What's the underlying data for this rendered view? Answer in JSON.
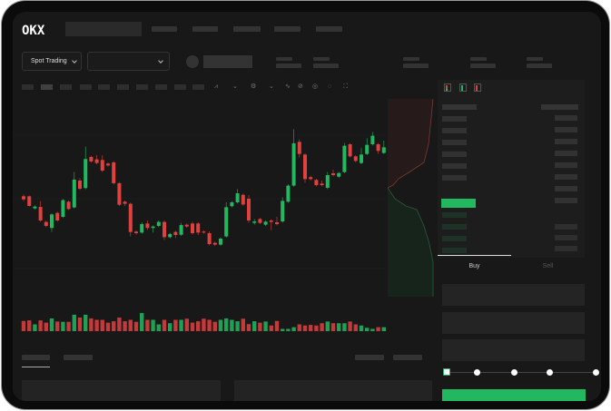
{
  "header": {
    "logo": "OKX"
  },
  "controls": {
    "market_type": "Spot Trading"
  },
  "trade_form": {
    "tabs": [
      {
        "label": "Buy",
        "active": true
      },
      {
        "label": "Sell",
        "active": false
      }
    ],
    "slider_percent": 0
  },
  "colors": {
    "up": "#22b85f",
    "down": "#e0413f",
    "background": "#181818"
  },
  "chart_data": {
    "type": "candlestick",
    "candles": [
      [
        50,
        47.5,
        51.5,
        46
      ],
      [
        50,
        42,
        50.5,
        41.5
      ],
      [
        40,
        41.5,
        42.5,
        39
      ],
      [
        41.2,
        30,
        46,
        29
      ],
      [
        28.8,
        25.5,
        29.8,
        24.5
      ],
      [
        23.8,
        35,
        36,
        20.5
      ],
      [
        36.2,
        30,
        37.2,
        29
      ],
      [
        33,
        46.8,
        47.8,
        32
      ],
      [
        45.5,
        39.5,
        46.5,
        38.5
      ],
      [
        40.8,
        63.8,
        70,
        39.8
      ],
      [
        63,
        56.2,
        65,
        55.2
      ],
      [
        56.8,
        80.8,
        91,
        55.8
      ],
      [
        82.5,
        78.8,
        83.5,
        77.8
      ],
      [
        80.5,
        77.5,
        84,
        76.5
      ],
      [
        80,
        71.2,
        84,
        70
      ],
      [
        77,
        75.5,
        78,
        74.5
      ],
      [
        78,
        60.8,
        79,
        59.8
      ],
      [
        60.8,
        43,
        61.8,
        42
      ],
      [
        45.5,
        43.8,
        46.5,
        42
      ],
      [
        43.8,
        20.5,
        44.8,
        17
      ],
      [
        20.8,
        19.5,
        21.8,
        18.5
      ],
      [
        20,
        27,
        28.5,
        19
      ],
      [
        27.5,
        23.8,
        30,
        22
      ],
      [
        23.8,
        25,
        26,
        20
      ],
      [
        25.5,
        28.8,
        30,
        24.5
      ],
      [
        28.8,
        16.2,
        29.8,
        14
      ],
      [
        16.2,
        18.8,
        19.8,
        15.2
      ],
      [
        20.5,
        18,
        21.5,
        15.5
      ],
      [
        18.2,
        26.2,
        28,
        17.2
      ],
      [
        26.5,
        25,
        27.5,
        24
      ],
      [
        27.5,
        19.5,
        29,
        18.5
      ],
      [
        27.5,
        20,
        28.5,
        18
      ],
      [
        20.8,
        20,
        21.8,
        19
      ],
      [
        19.5,
        10.5,
        21,
        9.5
      ],
      [
        11.5,
        10,
        12.5,
        9
      ],
      [
        10,
        15,
        16,
        9
      ],
      [
        16.8,
        41,
        45,
        15.8
      ],
      [
        41.8,
        45,
        46,
        40.8
      ],
      [
        45,
        52.5,
        56,
        44
      ],
      [
        51.2,
        43.2,
        52.2,
        42.2
      ],
      [
        48,
        30,
        51,
        28
      ],
      [
        28,
        29.2,
        31,
        26.5
      ],
      [
        31.2,
        28,
        32.2,
        27
      ],
      [
        26.5,
        29,
        30,
        25.5
      ],
      [
        30,
        28.8,
        31,
        22
      ],
      [
        28.5,
        27,
        33,
        26
      ],
      [
        29.2,
        46.2,
        49,
        28.2
      ],
      [
        45.5,
        58.8,
        60,
        44.5
      ],
      [
        58.8,
        93.8,
        105.5,
        57.8
      ],
      [
        95,
        85,
        97,
        82
      ],
      [
        84.5,
        64.2,
        85.5,
        61
      ],
      [
        65.8,
        64.2,
        66.8,
        63.2
      ],
      [
        63.5,
        59.2,
        64.5,
        58.2
      ],
      [
        60.5,
        59.2,
        63,
        58.2
      ],
      [
        57,
        67.5,
        70,
        56
      ],
      [
        69,
        67.5,
        72,
        66.5
      ],
      [
        66.2,
        69.2,
        70.2,
        65.2
      ],
      [
        70,
        91.8,
        94,
        69
      ],
      [
        93,
        83,
        94,
        82
      ],
      [
        83,
        79.2,
        84,
        78.2
      ],
      [
        77.5,
        84.5,
        90,
        76.5
      ],
      [
        85,
        92.5,
        98,
        84
      ],
      [
        93,
        100,
        103,
        92
      ],
      [
        93,
        87.5,
        94,
        85
      ],
      [
        85.8,
        90.5,
        96,
        84.8
      ]
    ],
    "volume": [
      36,
      38,
      24,
      38,
      30,
      45,
      34,
      33,
      33,
      58,
      48,
      58,
      45,
      40,
      40,
      30,
      35,
      48,
      35,
      40,
      33,
      64,
      40,
      40,
      24,
      40,
      28,
      40,
      40,
      44,
      30,
      35,
      44,
      40,
      33,
      40,
      45,
      40,
      35,
      44,
      25,
      35,
      30,
      34,
      20,
      36,
      8,
      8,
      14,
      24,
      20,
      22,
      20,
      28,
      34,
      28,
      28,
      28,
      34,
      24,
      20,
      12,
      8,
      14,
      14
    ]
  }
}
